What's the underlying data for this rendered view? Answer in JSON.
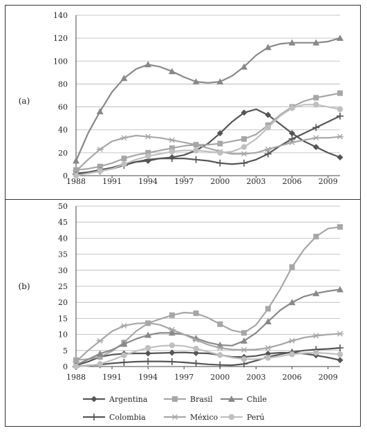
{
  "chart_data": [
    {
      "type": "line",
      "panel_label": "(a)",
      "x_ticks": [
        1988,
        1991,
        1994,
        1997,
        2000,
        2003,
        2006,
        2009
      ],
      "y_ticks": [
        0,
        20,
        40,
        60,
        80,
        100,
        120,
        140
      ],
      "xlim": [
        1988,
        2010
      ],
      "ylim": [
        0,
        140
      ],
      "grid": "horizontal",
      "series": [
        {
          "name": "Argentina",
          "marker": "diamond",
          "color": "#555555",
          "x": [
            1988,
            1989,
            1990,
            1991,
            1992,
            1993,
            1994,
            1995,
            1996,
            1997,
            1998,
            1999,
            2000,
            2001,
            2002,
            2003,
            2004,
            2005,
            2006,
            2007,
            2008,
            2009,
            2010
          ],
          "y": [
            2,
            3,
            5,
            7,
            10,
            12,
            13,
            15,
            16,
            18,
            22,
            28,
            37,
            47,
            55,
            58,
            53,
            45,
            37,
            30,
            25,
            20,
            16
          ]
        },
        {
          "name": "Brasil",
          "marker": "square",
          "color": "#a6a6a6",
          "x": [
            1988,
            1989,
            1990,
            1991,
            1992,
            1993,
            1994,
            1995,
            1996,
            1997,
            1998,
            1999,
            2000,
            2001,
            2002,
            2003,
            2004,
            2005,
            2006,
            2007,
            2008,
            2009,
            2010
          ],
          "y": [
            5,
            6,
            8,
            11,
            15,
            18,
            20,
            22,
            24,
            26,
            27,
            27,
            28,
            30,
            32,
            36,
            44,
            53,
            60,
            65,
            68,
            70,
            72
          ]
        },
        {
          "name": "Chile",
          "marker": "triangle",
          "color": "#888888",
          "x": [
            1988,
            1989,
            1990,
            1991,
            1992,
            1993,
            1994,
            1995,
            1996,
            1997,
            1998,
            1999,
            2000,
            2001,
            2002,
            2003,
            2004,
            2005,
            2006,
            2007,
            2008,
            2009,
            2010
          ],
          "y": [
            13,
            37,
            56,
            73,
            85,
            93,
            97,
            95,
            91,
            86,
            82,
            81,
            82,
            87,
            95,
            105,
            112,
            115,
            116,
            116,
            116,
            117,
            120
          ]
        },
        {
          "name": "Colombia",
          "marker": "plus",
          "color": "#555555",
          "x": [
            1988,
            1989,
            1990,
            1991,
            1992,
            1993,
            1994,
            1995,
            1996,
            1997,
            1998,
            1999,
            2000,
            2001,
            2002,
            2003,
            2004,
            2005,
            2006,
            2007,
            2008,
            2009,
            2010
          ],
          "y": [
            1,
            2,
            4,
            6,
            9,
            12,
            14,
            15,
            15,
            15,
            14,
            13,
            11,
            10,
            11,
            14,
            19,
            26,
            32,
            37,
            42,
            47,
            52
          ]
        },
        {
          "name": "México",
          "marker": "star",
          "color": "#a6a6a6",
          "x": [
            1988,
            1989,
            1990,
            1991,
            1992,
            1993,
            1994,
            1995,
            1996,
            1997,
            1998,
            1999,
            2000,
            2001,
            2002,
            2003,
            2004,
            2005,
            2006,
            2007,
            2008,
            2009,
            2010
          ],
          "y": [
            4,
            14,
            23,
            30,
            33,
            35,
            34,
            33,
            31,
            29,
            27,
            24,
            21,
            19,
            19,
            20,
            23,
            26,
            29,
            31,
            33,
            33,
            34
          ]
        },
        {
          "name": "Perú",
          "marker": "circle",
          "color": "#bfbfbf",
          "x": [
            1988,
            1989,
            1990,
            1991,
            1992,
            1993,
            1994,
            1995,
            1996,
            1997,
            1998,
            1999,
            2000,
            2001,
            2002,
            2003,
            2004,
            2005,
            2006,
            2007,
            2008,
            2009,
            2010
          ],
          "y": [
            0,
            2,
            4,
            6,
            10,
            14,
            17,
            19,
            21,
            22,
            22,
            21,
            20,
            21,
            25,
            32,
            42,
            52,
            59,
            62,
            62,
            60,
            58
          ]
        }
      ]
    },
    {
      "type": "line",
      "panel_label": "(b)",
      "x_ticks": [
        1988,
        1991,
        1994,
        1997,
        2000,
        2003,
        2006,
        2009
      ],
      "y_ticks": [
        0,
        5,
        10,
        15,
        20,
        25,
        30,
        35,
        40,
        45,
        50
      ],
      "xlim": [
        1988,
        2010
      ],
      "ylim": [
        0,
        50
      ],
      "grid": "horizontal",
      "series": [
        {
          "name": "Argentina",
          "marker": "diamond",
          "color": "#555555",
          "x": [
            1988,
            1989,
            1990,
            1991,
            1992,
            1993,
            1994,
            1995,
            1996,
            1997,
            1998,
            1999,
            2000,
            2001,
            2002,
            2003,
            2004,
            2005,
            2006,
            2007,
            2008,
            2009,
            2010
          ],
          "y": [
            0.3,
            1.5,
            3,
            3.7,
            4,
            4.1,
            4.1,
            4.2,
            4.3,
            4.4,
            4.2,
            4.1,
            3.6,
            3,
            3,
            3.3,
            4,
            4.3,
            4.3,
            4,
            3.5,
            2.8,
            2
          ]
        },
        {
          "name": "Brasil",
          "marker": "square",
          "color": "#a6a6a6",
          "x": [
            1988,
            1989,
            1990,
            1991,
            1992,
            1993,
            1994,
            1995,
            1996,
            1997,
            1998,
            1999,
            2000,
            2001,
            2002,
            2003,
            2004,
            2005,
            2006,
            2007,
            2008,
            2009,
            2010
          ],
          "y": [
            2,
            2.3,
            3,
            4.8,
            7.5,
            11,
            13.5,
            14.8,
            16,
            16.8,
            16.6,
            15.2,
            13.2,
            11.3,
            10.5,
            13,
            18,
            24,
            31,
            36.5,
            40.5,
            43,
            43.5
          ]
        },
        {
          "name": "Chile",
          "marker": "triangle",
          "color": "#888888",
          "x": [
            1988,
            1989,
            1990,
            1991,
            1992,
            1993,
            1994,
            1995,
            1996,
            1997,
            1998,
            1999,
            2000,
            2001,
            2002,
            2003,
            2004,
            2005,
            2006,
            2007,
            2008,
            2009,
            2010
          ],
          "y": [
            0.5,
            2.2,
            4,
            5.2,
            7,
            8.6,
            9.8,
            10.5,
            10.5,
            10,
            8.8,
            7.5,
            6.7,
            6.5,
            8,
            10.5,
            14,
            17.5,
            20,
            21.8,
            22.8,
            23.5,
            24
          ]
        },
        {
          "name": "Colombia",
          "marker": "plus",
          "color": "#555555",
          "x": [
            1988,
            1989,
            1990,
            1991,
            1992,
            1993,
            1994,
            1995,
            1996,
            1997,
            1998,
            1999,
            2000,
            2001,
            2002,
            2003,
            2004,
            2005,
            2006,
            2007,
            2008,
            2009,
            2010
          ],
          "y": [
            0,
            0.3,
            0.6,
            1,
            1.3,
            1.5,
            1.6,
            1.6,
            1.5,
            1.3,
            1,
            0.7,
            0.5,
            0.4,
            0.8,
            1.8,
            3,
            3.8,
            4.5,
            5,
            5.3,
            5.5,
            5.8
          ]
        },
        {
          "name": "México",
          "marker": "star",
          "color": "#a6a6a6",
          "x": [
            1988,
            1989,
            1990,
            1991,
            1992,
            1993,
            1994,
            1995,
            1996,
            1997,
            1998,
            1999,
            2000,
            2001,
            2002,
            2003,
            2004,
            2005,
            2006,
            2007,
            2008,
            2009,
            2010
          ],
          "y": [
            1.5,
            5,
            8,
            11,
            12.7,
            13.4,
            13.6,
            13,
            11.5,
            10,
            8.3,
            6.8,
            5.8,
            5.3,
            5.2,
            5.3,
            5.8,
            6.8,
            8,
            9,
            9.6,
            10,
            10.2
          ]
        },
        {
          "name": "Perú",
          "marker": "circle",
          "color": "#bfbfbf",
          "x": [
            1988,
            1989,
            1990,
            1991,
            1992,
            1993,
            1994,
            1995,
            1996,
            1997,
            1998,
            1999,
            2000,
            2001,
            2002,
            2003,
            2004,
            2005,
            2006,
            2007,
            2008,
            2009,
            2010
          ],
          "y": [
            0,
            0.2,
            0.8,
            2,
            3.5,
            4.8,
            5.8,
            6.4,
            6.6,
            6.4,
            5.6,
            4.6,
            3.6,
            2.8,
            2.3,
            2.3,
            2.7,
            3.2,
            3.8,
            4.2,
            4.3,
            4.1,
            3.8
          ]
        }
      ]
    }
  ],
  "legend": [
    "Argentina",
    "Brasil",
    "Chile",
    "Colombia",
    "México",
    "Perú"
  ]
}
